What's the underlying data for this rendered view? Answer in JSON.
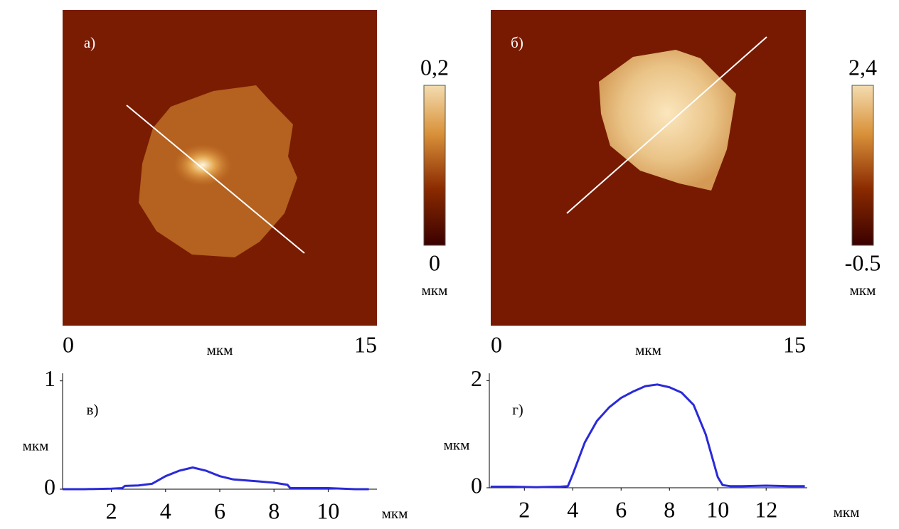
{
  "chart_data": [
    {
      "type": "image",
      "label": "а)",
      "xlim": [
        0,
        15
      ],
      "xticks": [
        0,
        15
      ],
      "xlabel": "мкм",
      "colorbar": {
        "clim": [
          0,
          0.2
        ],
        "ticks": [
          {
            "value": 0.2,
            "label": "0,2"
          },
          0
        ],
        "label": "мкм"
      }
    },
    {
      "type": "image",
      "label": "б)",
      "xlim": [
        0,
        15
      ],
      "xticks": [
        0,
        15
      ],
      "xlabel": "мкм",
      "colorbar": {
        "clim": [
          -0.5,
          2.4
        ],
        "ticks": [
          {
            "value": 2.4,
            "label": "2,4"
          },
          -0.5
        ],
        "label": "мкм"
      }
    },
    {
      "type": "line",
      "label": "в)",
      "xlabel": "мкм",
      "ylabel": "мкм",
      "color": "#2a2ad8",
      "xlim": [
        0.2,
        11.8
      ],
      "ylim": [
        0,
        1.07
      ],
      "xticks": [
        2,
        4,
        6,
        8,
        10
      ],
      "yticks": [
        0,
        1
      ],
      "x": [
        0.2,
        1,
        2,
        2.4,
        2.5,
        3,
        3.5,
        4,
        4.5,
        5,
        5.5,
        6,
        6.5,
        7,
        7.5,
        8,
        8.5,
        8.6,
        9,
        10,
        11,
        11.5
      ],
      "values": [
        0.0,
        0.0,
        0.005,
        0.01,
        0.03,
        0.035,
        0.05,
        0.12,
        0.17,
        0.2,
        0.17,
        0.12,
        0.09,
        0.08,
        0.07,
        0.06,
        0.04,
        0.01,
        0.01,
        0.01,
        0.0,
        0.0
      ]
    },
    {
      "type": "line",
      "label": "г)",
      "xlabel": "мкм",
      "ylabel": "мкм",
      "color": "#2a2ad8",
      "xlim": [
        0.55,
        13.7
      ],
      "ylim": [
        0,
        2.14
      ],
      "xticks": [
        2,
        4,
        6,
        8,
        10,
        12
      ],
      "yticks": [
        0,
        2
      ],
      "x": [
        0.6,
        1.5,
        2.5,
        3.5,
        3.8,
        4,
        4.5,
        5,
        5.5,
        6,
        6.5,
        7,
        7.5,
        8,
        8.5,
        9,
        9.5,
        10,
        10.2,
        10.5,
        11,
        12,
        13,
        13.6
      ],
      "values": [
        0.02,
        0.02,
        0.01,
        0.02,
        0.03,
        0.25,
        0.85,
        1.25,
        1.5,
        1.68,
        1.8,
        1.9,
        1.93,
        1.88,
        1.78,
        1.55,
        1.0,
        0.2,
        0.05,
        0.03,
        0.03,
        0.04,
        0.03,
        0.03
      ]
    }
  ]
}
